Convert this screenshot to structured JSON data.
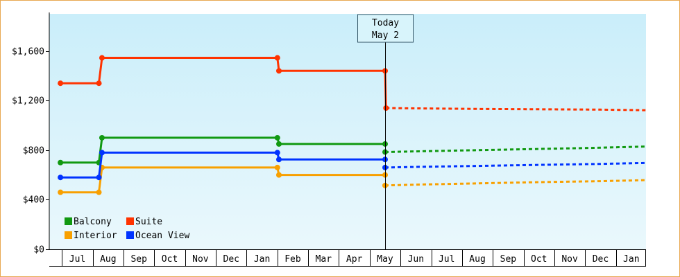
{
  "chart_data": {
    "type": "line",
    "title": "",
    "xlabel": "",
    "ylabel": "",
    "ylim": [
      0,
      1900
    ],
    "y_ticks": [
      "$0",
      "$400",
      "$800",
      "$1,200",
      "$1,600"
    ],
    "y_tick_values": [
      0,
      400,
      800,
      1200,
      1600
    ],
    "x_ticks": [
      "Jul",
      "Aug",
      "Sep",
      "Oct",
      "Nov",
      "Dec",
      "Jan",
      "Feb",
      "Mar",
      "Apr",
      "May",
      "Jun",
      "Jul",
      "Aug",
      "Sep",
      "Oct",
      "Nov",
      "Dec",
      "Jan"
    ],
    "x_range": [
      -0.55,
      18.5
    ],
    "today": {
      "line1": "Today",
      "line2": "May 2",
      "x": 10.0
    },
    "legend": {
      "placement": "bottom-left"
    },
    "colors": {
      "Balcony": "#119911",
      "Suite": "#ff3300",
      "Interior": "#f8a000",
      "Ocean View": "#0033ff",
      "plot_top": "#caeefa",
      "plot_bottom": "#eaf8fc"
    },
    "series": [
      {
        "name": "Balcony",
        "history": [
          [
            -0.55,
            700
          ],
          [
            0.7,
            700
          ],
          [
            0.8,
            900
          ],
          [
            6.5,
            900
          ],
          [
            6.55,
            850
          ],
          [
            10.0,
            850
          ]
        ],
        "forecast": [
          [
            10.0,
            785
          ],
          [
            11.0,
            790
          ],
          [
            13.0,
            800
          ],
          [
            15.0,
            810
          ],
          [
            17.0,
            820
          ],
          [
            18.5,
            830
          ]
        ]
      },
      {
        "name": "Suite",
        "history": [
          [
            -0.55,
            1340
          ],
          [
            0.7,
            1340
          ],
          [
            0.8,
            1545
          ],
          [
            6.5,
            1545
          ],
          [
            6.55,
            1440
          ],
          [
            10.0,
            1440
          ],
          [
            10.03,
            1140
          ]
        ],
        "forecast": [
          [
            10.03,
            1140
          ],
          [
            11.0,
            1137
          ],
          [
            13.0,
            1133
          ],
          [
            15.0,
            1130
          ],
          [
            17.0,
            1127
          ],
          [
            18.5,
            1122
          ]
        ]
      },
      {
        "name": "Interior",
        "history": [
          [
            -0.55,
            460
          ],
          [
            0.7,
            460
          ],
          [
            0.8,
            660
          ],
          [
            6.5,
            660
          ],
          [
            6.55,
            600
          ],
          [
            10.0,
            600
          ]
        ],
        "forecast": [
          [
            10.0,
            515
          ],
          [
            11.0,
            522
          ],
          [
            13.0,
            532
          ],
          [
            15.0,
            542
          ],
          [
            17.0,
            550
          ],
          [
            18.5,
            558
          ]
        ]
      },
      {
        "name": "Ocean View",
        "history": [
          [
            -0.55,
            580
          ],
          [
            0.7,
            580
          ],
          [
            0.8,
            780
          ],
          [
            6.5,
            780
          ],
          [
            6.55,
            725
          ],
          [
            10.0,
            725
          ]
        ],
        "forecast": [
          [
            10.0,
            660
          ],
          [
            11.0,
            665
          ],
          [
            13.0,
            673
          ],
          [
            15.0,
            681
          ],
          [
            17.0,
            689
          ],
          [
            18.5,
            697
          ]
        ]
      }
    ]
  }
}
